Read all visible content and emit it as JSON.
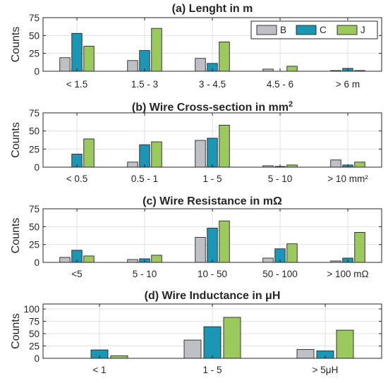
{
  "legend": {
    "position": "top-right"
  },
  "chart_data": [
    {
      "type": "bar",
      "title": "(a) Lenght in m",
      "ylabel": "Counts",
      "ylim": [
        0,
        75
      ],
      "yticks": [
        "0",
        "25",
        "50",
        "75"
      ],
      "grid": true,
      "categories": [
        "< 1.5",
        "1.5 - 3",
        "3 - 4.5",
        "4.5 - 6",
        "> 6 m"
      ],
      "series": [
        {
          "name": "B",
          "color": "#bfc0c6",
          "values": [
            19,
            15,
            18,
            3,
            1
          ]
        },
        {
          "name": "C",
          "color": "#1b97b5",
          "values": [
            53,
            29,
            11,
            0,
            4
          ]
        },
        {
          "name": "J",
          "color": "#9cc95e",
          "values": [
            35,
            60,
            41,
            7,
            1
          ]
        }
      ]
    },
    {
      "type": "bar",
      "title_main": "(b) Wire Cross-section in mm",
      "title_sup": "2",
      "ylabel": "Counts",
      "ylim": [
        0,
        75
      ],
      "yticks": [
        "0",
        "25",
        "50",
        "75"
      ],
      "grid": true,
      "categories": [
        "< 0.5",
        "0.5 - 1",
        "1 - 5",
        "5 - 10",
        "> 10 mm²"
      ],
      "series": [
        {
          "name": "B",
          "color": "#bfc0c6",
          "values": [
            0,
            7,
            37,
            2,
            10
          ]
        },
        {
          "name": "C",
          "color": "#1b97b5",
          "values": [
            18,
            31,
            40,
            1,
            3
          ]
        },
        {
          "name": "J",
          "color": "#9cc95e",
          "values": [
            39,
            35,
            58,
            3,
            7
          ]
        }
      ]
    },
    {
      "type": "bar",
      "title": "(c) Wire Resistance in mΩ",
      "ylabel": "Counts",
      "ylim": [
        0,
        75
      ],
      "yticks": [
        "0",
        "25",
        "50",
        "75"
      ],
      "grid": true,
      "categories": [
        "<5",
        "5 - 10",
        "10 - 50",
        "50 - 100",
        "> 100 mΩ"
      ],
      "series": [
        {
          "name": "B",
          "color": "#bfc0c6",
          "values": [
            7,
            4,
            35,
            6,
            2
          ]
        },
        {
          "name": "C",
          "color": "#1b97b5",
          "values": [
            17,
            5,
            48,
            19,
            6
          ]
        },
        {
          "name": "J",
          "color": "#9cc95e",
          "values": [
            9,
            10,
            58,
            26,
            42
          ]
        }
      ]
    },
    {
      "type": "bar",
      "title": "(d) Wire Inductance in μH",
      "ylabel": "Counts",
      "ylim": [
        0,
        110
      ],
      "yticks": [
        "0",
        "25",
        "50",
        "75",
        "100"
      ],
      "grid": true,
      "categories": [
        "< 1",
        "1 - 5",
        "> 5μH"
      ],
      "series": [
        {
          "name": "B",
          "color": "#bfc0c6",
          "values": [
            0,
            37,
            18
          ]
        },
        {
          "name": "C",
          "color": "#1b97b5",
          "values": [
            17,
            64,
            15
          ]
        },
        {
          "name": "J",
          "color": "#9cc95e",
          "values": [
            5,
            83,
            57
          ]
        }
      ]
    }
  ]
}
